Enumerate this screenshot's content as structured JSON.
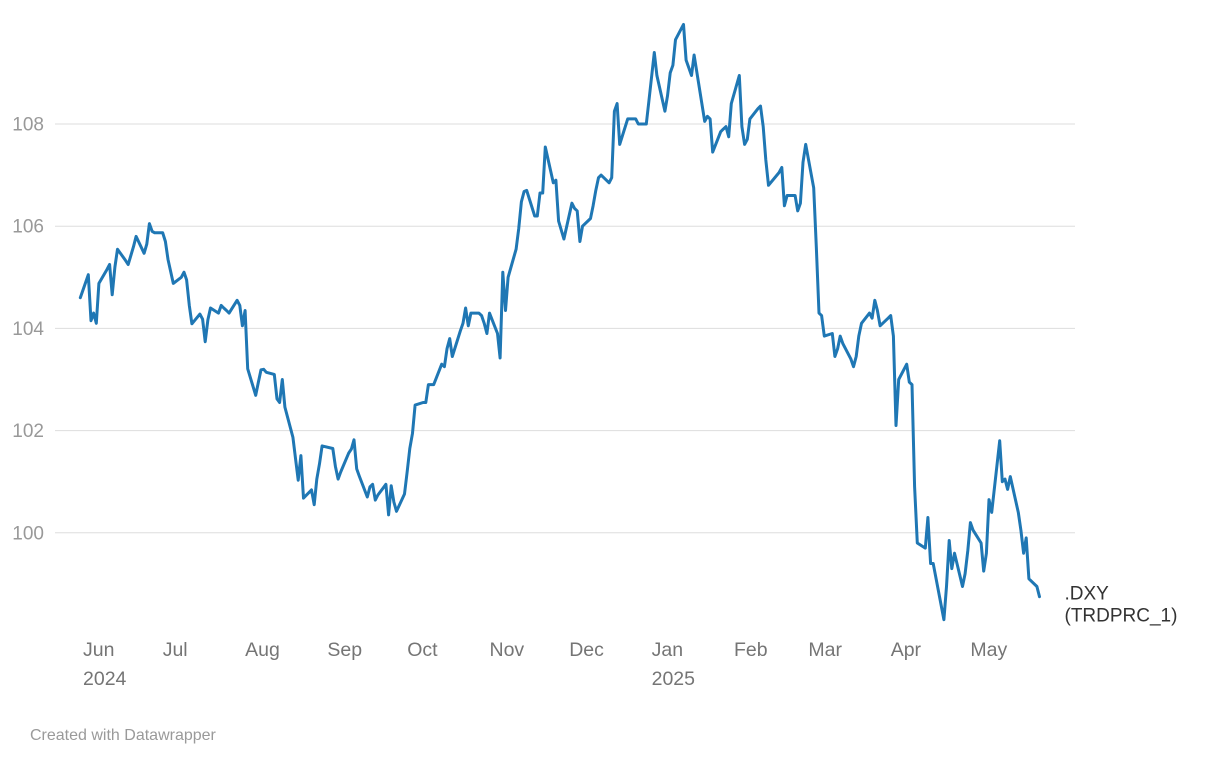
{
  "page": {
    "attribution": "Created with Datawrapper"
  },
  "chart_data": {
    "type": "line",
    "title": "",
    "series_label": ".DXY (TRDPRC_1)",
    "style": {
      "line_color": "#1f77b4",
      "grid_color": "#dddddd",
      "y_axis_text_color": "#999999",
      "x_axis_text_color": "#757575",
      "series_label_color": "#333333",
      "attribution_color": "#9a9a9a",
      "background": "#ffffff"
    },
    "y_axis": {
      "ticks": [
        100,
        102,
        104,
        106,
        108
      ],
      "range": [
        97.8,
        110.2
      ],
      "grid": true
    },
    "x_axis": {
      "range": [
        "2024-05-31",
        "2025-05-27"
      ],
      "ticks": [
        {
          "date": "2024-06-01",
          "label": "Jun",
          "sublabel": "2024"
        },
        {
          "date": "2024-07-01",
          "label": "Jul"
        },
        {
          "date": "2024-08-01",
          "label": "Aug"
        },
        {
          "date": "2024-09-01",
          "label": "Sep"
        },
        {
          "date": "2024-10-01",
          "label": "Oct"
        },
        {
          "date": "2024-11-01",
          "label": "Nov"
        },
        {
          "date": "2024-12-01",
          "label": "Dec"
        },
        {
          "date": "2025-01-01",
          "label": "Jan",
          "sublabel": "2025"
        },
        {
          "date": "2025-02-01",
          "label": "Feb"
        },
        {
          "date": "2025-03-01",
          "label": "Mar"
        },
        {
          "date": "2025-04-01",
          "label": "Apr"
        },
        {
          "date": "2025-05-01",
          "label": "May"
        }
      ]
    },
    "legend": "end-of-line-label",
    "series": [
      {
        "name": ".DXY (TRDPRC_1)",
        "label_lines": [
          ".DXY",
          "(TRDPRC_1)"
        ],
        "color": "#1f77b4",
        "points": [
          [
            "2024-05-31",
            104.6
          ],
          [
            "2024-06-03",
            105.05
          ],
          [
            "2024-06-04",
            104.15
          ],
          [
            "2024-06-05",
            104.3
          ],
          [
            "2024-06-06",
            104.1
          ],
          [
            "2024-06-07",
            104.88
          ],
          [
            "2024-06-10",
            105.15
          ],
          [
            "2024-06-11",
            105.25
          ],
          [
            "2024-06-12",
            104.66
          ],
          [
            "2024-06-13",
            105.2
          ],
          [
            "2024-06-14",
            105.55
          ],
          [
            "2024-06-17",
            105.33
          ],
          [
            "2024-06-18",
            105.25
          ],
          [
            "2024-06-20",
            105.6
          ],
          [
            "2024-06-21",
            105.8
          ],
          [
            "2024-06-24",
            105.47
          ],
          [
            "2024-06-25",
            105.65
          ],
          [
            "2024-06-26",
            106.05
          ],
          [
            "2024-06-27",
            105.9
          ],
          [
            "2024-06-28",
            105.87
          ],
          [
            "2024-07-01",
            105.87
          ],
          [
            "2024-07-02",
            105.7
          ],
          [
            "2024-07-03",
            105.35
          ],
          [
            "2024-07-05",
            104.88
          ],
          [
            "2024-07-08",
            105.0
          ],
          [
            "2024-07-09",
            105.1
          ],
          [
            "2024-07-10",
            104.95
          ],
          [
            "2024-07-11",
            104.45
          ],
          [
            "2024-07-12",
            104.09
          ],
          [
            "2024-07-15",
            104.28
          ],
          [
            "2024-07-16",
            104.18
          ],
          [
            "2024-07-17",
            103.74
          ],
          [
            "2024-07-18",
            104.17
          ],
          [
            "2024-07-19",
            104.4
          ],
          [
            "2024-07-22",
            104.3
          ],
          [
            "2024-07-23",
            104.45
          ],
          [
            "2024-07-24",
            104.4
          ],
          [
            "2024-07-25",
            104.35
          ],
          [
            "2024-07-26",
            104.3
          ],
          [
            "2024-07-29",
            104.55
          ],
          [
            "2024-07-30",
            104.45
          ],
          [
            "2024-07-31",
            104.05
          ],
          [
            "2024-08-01",
            104.35
          ],
          [
            "2024-08-02",
            103.21
          ],
          [
            "2024-08-05",
            102.69
          ],
          [
            "2024-08-06",
            102.95
          ],
          [
            "2024-08-07",
            103.19
          ],
          [
            "2024-08-08",
            103.2
          ],
          [
            "2024-08-09",
            103.14
          ],
          [
            "2024-08-12",
            103.1
          ],
          [
            "2024-08-13",
            102.62
          ],
          [
            "2024-08-14",
            102.55
          ],
          [
            "2024-08-15",
            103.0
          ],
          [
            "2024-08-16",
            102.46
          ],
          [
            "2024-08-19",
            101.87
          ],
          [
            "2024-08-20",
            101.44
          ],
          [
            "2024-08-21",
            101.03
          ],
          [
            "2024-08-22",
            101.51
          ],
          [
            "2024-08-23",
            100.68
          ],
          [
            "2024-08-26",
            100.84
          ],
          [
            "2024-08-27",
            100.55
          ],
          [
            "2024-08-28",
            101.05
          ],
          [
            "2024-08-29",
            101.35
          ],
          [
            "2024-08-30",
            101.7
          ],
          [
            "2024-09-03",
            101.65
          ],
          [
            "2024-09-04",
            101.3
          ],
          [
            "2024-09-05",
            101.05
          ],
          [
            "2024-09-06",
            101.19
          ],
          [
            "2024-09-09",
            101.56
          ],
          [
            "2024-09-10",
            101.64
          ],
          [
            "2024-09-11",
            101.82
          ],
          [
            "2024-09-12",
            101.25
          ],
          [
            "2024-09-13",
            101.11
          ],
          [
            "2024-09-16",
            100.7
          ],
          [
            "2024-09-17",
            100.9
          ],
          [
            "2024-09-18",
            100.95
          ],
          [
            "2024-09-19",
            100.64
          ],
          [
            "2024-09-20",
            100.74
          ],
          [
            "2024-09-23",
            100.95
          ],
          [
            "2024-09-24",
            100.35
          ],
          [
            "2024-09-25",
            100.92
          ],
          [
            "2024-09-26",
            100.6
          ],
          [
            "2024-09-27",
            100.42
          ],
          [
            "2024-09-30",
            100.76
          ],
          [
            "2024-10-01",
            101.2
          ],
          [
            "2024-10-02",
            101.65
          ],
          [
            "2024-10-03",
            101.95
          ],
          [
            "2024-10-04",
            102.5
          ],
          [
            "2024-10-07",
            102.55
          ],
          [
            "2024-10-08",
            102.55
          ],
          [
            "2024-10-09",
            102.9
          ],
          [
            "2024-10-10",
            102.9
          ],
          [
            "2024-10-11",
            102.9
          ],
          [
            "2024-10-14",
            103.3
          ],
          [
            "2024-10-15",
            103.25
          ],
          [
            "2024-10-16",
            103.6
          ],
          [
            "2024-10-17",
            103.8
          ],
          [
            "2024-10-18",
            103.45
          ],
          [
            "2024-10-21",
            103.95
          ],
          [
            "2024-10-22",
            104.1
          ],
          [
            "2024-10-23",
            104.4
          ],
          [
            "2024-10-24",
            104.05
          ],
          [
            "2024-10-25",
            104.3
          ],
          [
            "2024-10-28",
            104.3
          ],
          [
            "2024-10-29",
            104.25
          ],
          [
            "2024-10-30",
            104.1
          ],
          [
            "2024-10-31",
            103.9
          ],
          [
            "2024-11-01",
            104.3
          ],
          [
            "2024-11-04",
            103.9
          ],
          [
            "2024-11-05",
            103.42
          ],
          [
            "2024-11-06",
            105.1
          ],
          [
            "2024-11-07",
            104.35
          ],
          [
            "2024-11-08",
            105.0
          ],
          [
            "2024-11-11",
            105.55
          ],
          [
            "2024-11-12",
            105.95
          ],
          [
            "2024-11-13",
            106.48
          ],
          [
            "2024-11-14",
            106.68
          ],
          [
            "2024-11-15",
            106.7
          ],
          [
            "2024-11-18",
            106.2
          ],
          [
            "2024-11-19",
            106.2
          ],
          [
            "2024-11-20",
            106.65
          ],
          [
            "2024-11-21",
            106.65
          ],
          [
            "2024-11-22",
            107.55
          ],
          [
            "2024-11-25",
            106.85
          ],
          [
            "2024-11-26",
            106.9
          ],
          [
            "2024-11-27",
            106.1
          ],
          [
            "2024-11-29",
            105.75
          ],
          [
            "2024-12-02",
            106.45
          ],
          [
            "2024-12-03",
            106.35
          ],
          [
            "2024-12-04",
            106.3
          ],
          [
            "2024-12-05",
            105.7
          ],
          [
            "2024-12-06",
            106.0
          ],
          [
            "2024-12-09",
            106.15
          ],
          [
            "2024-12-10",
            106.4
          ],
          [
            "2024-12-11",
            106.7
          ],
          [
            "2024-12-12",
            106.95
          ],
          [
            "2024-12-13",
            107.0
          ],
          [
            "2024-12-16",
            106.85
          ],
          [
            "2024-12-17",
            106.95
          ],
          [
            "2024-12-18",
            108.25
          ],
          [
            "2024-12-19",
            108.4
          ],
          [
            "2024-12-20",
            107.6
          ],
          [
            "2024-12-23",
            108.1
          ],
          [
            "2024-12-26",
            108.1
          ],
          [
            "2024-12-27",
            108.0
          ],
          [
            "2024-12-30",
            108.0
          ],
          [
            "2024-12-31",
            108.45
          ],
          [
            "2025-01-02",
            109.4
          ],
          [
            "2025-01-03",
            108.95
          ],
          [
            "2025-01-06",
            108.25
          ],
          [
            "2025-01-07",
            108.55
          ],
          [
            "2025-01-08",
            109.0
          ],
          [
            "2025-01-09",
            109.15
          ],
          [
            "2025-01-10",
            109.65
          ],
          [
            "2025-01-13",
            109.95
          ],
          [
            "2025-01-14",
            109.25
          ],
          [
            "2025-01-15",
            109.1
          ],
          [
            "2025-01-16",
            108.95
          ],
          [
            "2025-01-17",
            109.35
          ],
          [
            "2025-01-21",
            108.05
          ],
          [
            "2025-01-22",
            108.15
          ],
          [
            "2025-01-23",
            108.1
          ],
          [
            "2025-01-24",
            107.45
          ],
          [
            "2025-01-27",
            107.85
          ],
          [
            "2025-01-28",
            107.9
          ],
          [
            "2025-01-29",
            107.95
          ],
          [
            "2025-01-30",
            107.75
          ],
          [
            "2025-01-31",
            108.4
          ],
          [
            "2025-02-03",
            108.95
          ],
          [
            "2025-02-04",
            107.95
          ],
          [
            "2025-02-05",
            107.6
          ],
          [
            "2025-02-06",
            107.7
          ],
          [
            "2025-02-07",
            108.1
          ],
          [
            "2025-02-10",
            108.3
          ],
          [
            "2025-02-11",
            108.35
          ],
          [
            "2025-02-12",
            107.95
          ],
          [
            "2025-02-13",
            107.3
          ],
          [
            "2025-02-14",
            106.8
          ],
          [
            "2025-02-18",
            107.05
          ],
          [
            "2025-02-19",
            107.15
          ],
          [
            "2025-02-20",
            106.4
          ],
          [
            "2025-02-21",
            106.6
          ],
          [
            "2025-02-24",
            106.6
          ],
          [
            "2025-02-25",
            106.3
          ],
          [
            "2025-02-26",
            106.45
          ],
          [
            "2025-02-27",
            107.25
          ],
          [
            "2025-02-28",
            107.6
          ],
          [
            "2025-03-03",
            106.75
          ],
          [
            "2025-03-04",
            105.6
          ],
          [
            "2025-03-05",
            104.3
          ],
          [
            "2025-03-06",
            104.25
          ],
          [
            "2025-03-07",
            103.85
          ],
          [
            "2025-03-10",
            103.9
          ],
          [
            "2025-03-11",
            103.45
          ],
          [
            "2025-03-12",
            103.6
          ],
          [
            "2025-03-13",
            103.85
          ],
          [
            "2025-03-14",
            103.7
          ],
          [
            "2025-03-17",
            103.4
          ],
          [
            "2025-03-18",
            103.25
          ],
          [
            "2025-03-19",
            103.45
          ],
          [
            "2025-03-20",
            103.85
          ],
          [
            "2025-03-21",
            104.1
          ],
          [
            "2025-03-24",
            104.3
          ],
          [
            "2025-03-25",
            104.2
          ],
          [
            "2025-03-26",
            104.55
          ],
          [
            "2025-03-27",
            104.35
          ],
          [
            "2025-03-28",
            104.05
          ],
          [
            "2025-03-31",
            104.2
          ],
          [
            "2025-04-01",
            104.25
          ],
          [
            "2025-04-02",
            103.85
          ],
          [
            "2025-04-03",
            102.1
          ],
          [
            "2025-04-04",
            103.0
          ],
          [
            "2025-04-07",
            103.3
          ],
          [
            "2025-04-08",
            102.95
          ],
          [
            "2025-04-09",
            102.9
          ],
          [
            "2025-04-10",
            100.9
          ],
          [
            "2025-04-11",
            99.8
          ],
          [
            "2025-04-14",
            99.7
          ],
          [
            "2025-04-15",
            100.3
          ],
          [
            "2025-04-16",
            99.4
          ],
          [
            "2025-04-17",
            99.4
          ],
          [
            "2025-04-21",
            98.3
          ],
          [
            "2025-04-22",
            98.95
          ],
          [
            "2025-04-23",
            99.85
          ],
          [
            "2025-04-24",
            99.3
          ],
          [
            "2025-04-25",
            99.6
          ],
          [
            "2025-04-28",
            98.95
          ],
          [
            "2025-04-29",
            99.2
          ],
          [
            "2025-04-30",
            99.65
          ],
          [
            "2025-05-01",
            100.2
          ],
          [
            "2025-05-02",
            100.05
          ],
          [
            "2025-05-05",
            99.8
          ],
          [
            "2025-05-06",
            99.25
          ],
          [
            "2025-05-07",
            99.6
          ],
          [
            "2025-05-08",
            100.65
          ],
          [
            "2025-05-09",
            100.4
          ],
          [
            "2025-05-12",
            101.8
          ],
          [
            "2025-05-13",
            101.0
          ],
          [
            "2025-05-14",
            101.05
          ],
          [
            "2025-05-15",
            100.85
          ],
          [
            "2025-05-16",
            101.1
          ],
          [
            "2025-05-19",
            100.4
          ],
          [
            "2025-05-20",
            100.05
          ],
          [
            "2025-05-21",
            99.6
          ],
          [
            "2025-05-22",
            99.9
          ],
          [
            "2025-05-23",
            99.1
          ],
          [
            "2025-05-26",
            98.95
          ],
          [
            "2025-05-27",
            98.75
          ]
        ]
      }
    ]
  }
}
